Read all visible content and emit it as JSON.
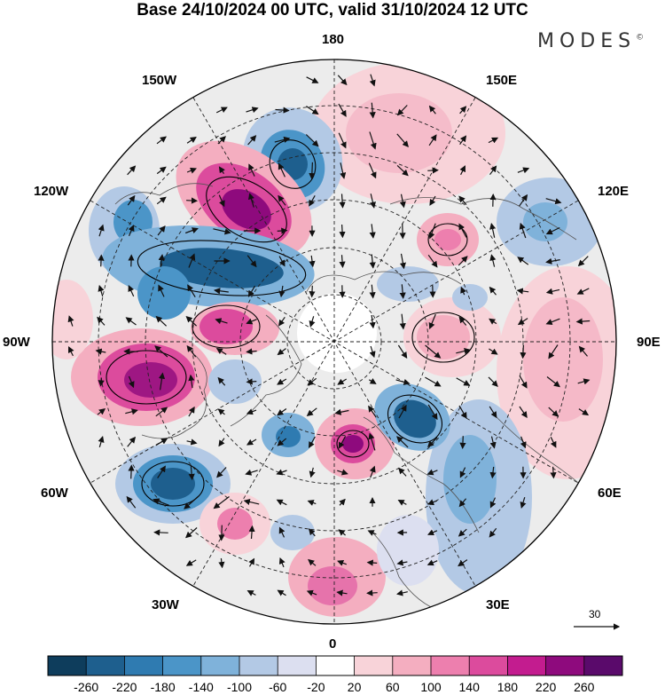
{
  "title": "Base 24/10/2024 00 UTC, valid 31/10/2024 12 UTC",
  "brand": "MODES",
  "brand_mark": "©",
  "longitude_labels": {
    "n180": "180",
    "e150": "150E",
    "e120": "120E",
    "e90": "90E",
    "e60": "60E",
    "e30": "30E",
    "s0": "0",
    "w30": "30W",
    "w60": "60W",
    "w90": "90W",
    "w120": "120W",
    "w150": "150W"
  },
  "reference_vector_label": "30",
  "colorbar": {
    "ticks": [
      "-260",
      "-220",
      "-180",
      "-140",
      "-100",
      "-60",
      "-20",
      "20",
      "60",
      "100",
      "140",
      "180",
      "220",
      "260"
    ],
    "colors": [
      "#0e3d5c",
      "#1e5f8e",
      "#2f7bb1",
      "#4b95c8",
      "#7fb2da",
      "#b3c9e5",
      "#dcdff0",
      "#ffffff",
      "#f8d3d9",
      "#f4aec0",
      "#ed7fae",
      "#dc4b9d",
      "#c31c8f",
      "#8e0a7d",
      "#5a0a6b"
    ]
  },
  "anomaly_colors": {
    "strong_neg": "#1e5f8e",
    "neg": "#4b95c8",
    "weak_neg": "#b3c9e5",
    "faint_neg": "#dcdff0",
    "faint_pos": "#f8d3d9",
    "pos": "#f4aec0",
    "strong_pos": "#dc4b9d",
    "very_strong_pos": "#8e0a7d",
    "neutral": "#ececec"
  },
  "map_icons": [
    "polar-stereographic-map",
    "wind-vector-arrows",
    "coastline-outline"
  ]
}
